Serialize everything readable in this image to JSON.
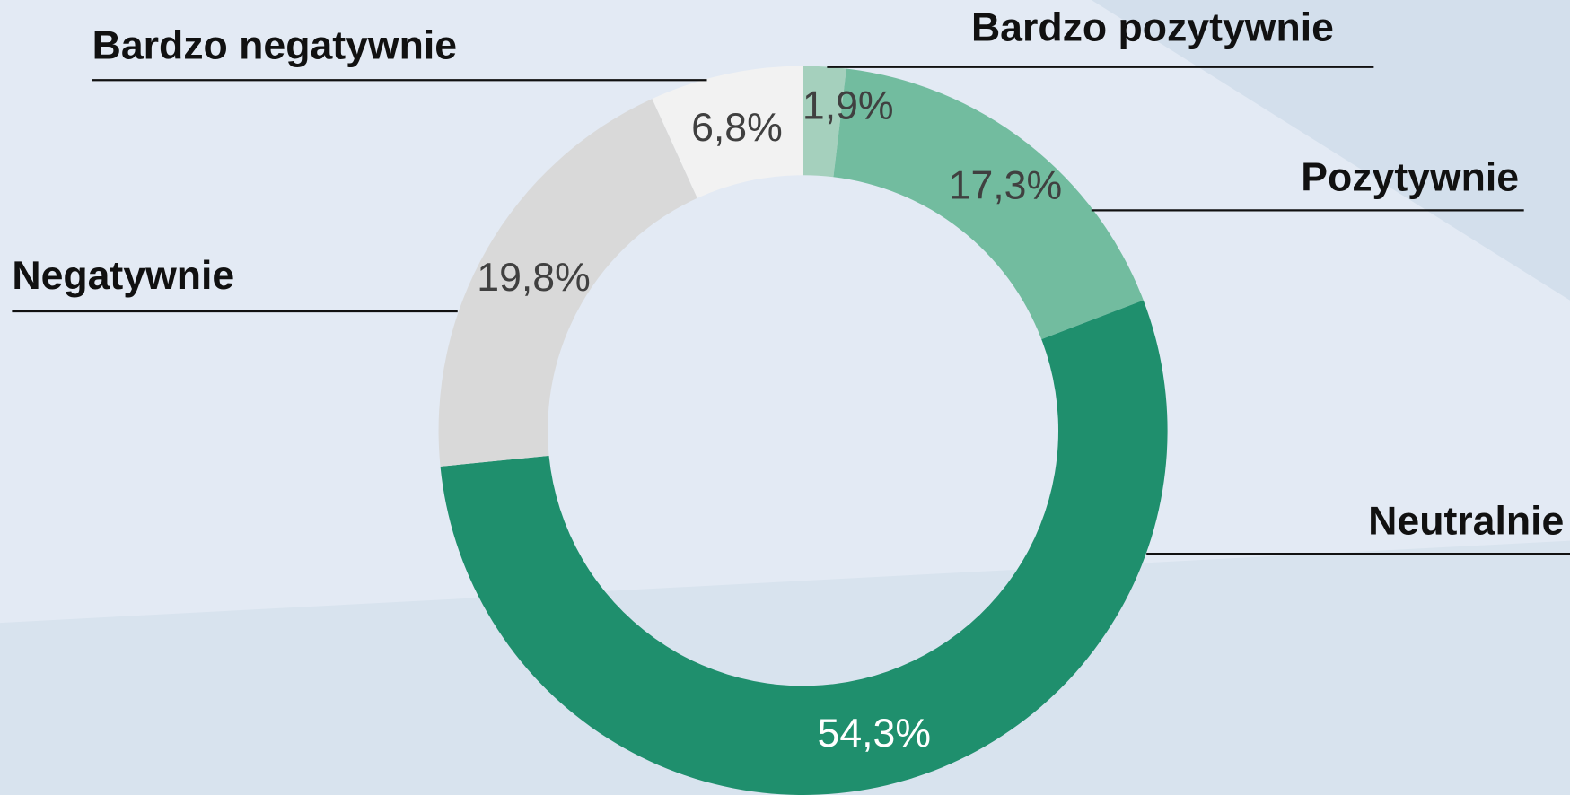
{
  "chart_data": {
    "type": "donut",
    "categories": [
      "Bardzo pozytywnie",
      "Pozytywnie",
      "Neutralnie",
      "Negatywnie",
      "Bardzo negatywnie"
    ],
    "values": [
      1.9,
      17.3,
      54.3,
      19.8,
      6.8
    ],
    "value_labels": [
      "1,9%",
      "17,3%",
      "54,3%",
      "19,8%",
      "6,8%"
    ],
    "colors": [
      "#a5d0bd",
      "#72bc9f",
      "#1f8f6d",
      "#d9d9d9",
      "#f2f2f2"
    ]
  }
}
